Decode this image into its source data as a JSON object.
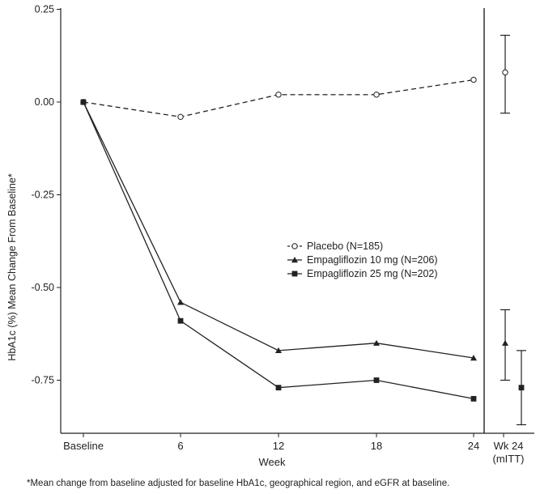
{
  "chart_data": {
    "type": "line",
    "ylabel": "HbA1c (%) Mean Change From Baseline*",
    "xlabel": "Week",
    "categories": [
      "Baseline",
      "6",
      "12",
      "18",
      "24"
    ],
    "ylim": [
      -0.9,
      0.25
    ],
    "yticks": [
      "0.25",
      "0.00",
      "-0.25",
      "-0.50",
      "-0.75"
    ],
    "ytick_values": [
      0.25,
      0.0,
      -0.25,
      -0.5,
      -0.75
    ],
    "series": [
      {
        "name": "Placebo (N=185)",
        "marker": "open-circle",
        "dashed": true,
        "values": [
          0.0,
          -0.04,
          0.02,
          0.02,
          0.06
        ]
      },
      {
        "name": "Empagliflozin 10 mg (N=206)",
        "marker": "triangle",
        "dashed": false,
        "values": [
          0.0,
          -0.54,
          -0.67,
          -0.65,
          -0.69
        ]
      },
      {
        "name": "Empagliflozin 25 mg (N=202)",
        "marker": "square",
        "dashed": false,
        "values": [
          0.0,
          -0.59,
          -0.77,
          -0.75,
          -0.8
        ]
      }
    ],
    "side_panel": {
      "label_line1": "Wk 24",
      "label_line2": "(mITT)",
      "estimates": [
        {
          "series": "Placebo (N=185)",
          "marker": "open-circle",
          "mean": 0.08,
          "lower": -0.03,
          "upper": 0.18
        },
        {
          "series": "Empagliflozin 10 mg (N=206)",
          "marker": "triangle",
          "mean": -0.65,
          "lower": -0.75,
          "upper": -0.56
        },
        {
          "series": "Empagliflozin 25 mg (N=202)",
          "marker": "square",
          "mean": -0.77,
          "lower": -0.87,
          "upper": -0.67
        }
      ]
    },
    "legend_position": "center-right",
    "grid": false
  },
  "footnote": "*Mean change from baseline adjusted for baseline HbA1c, geographical region, and eGFR at baseline."
}
